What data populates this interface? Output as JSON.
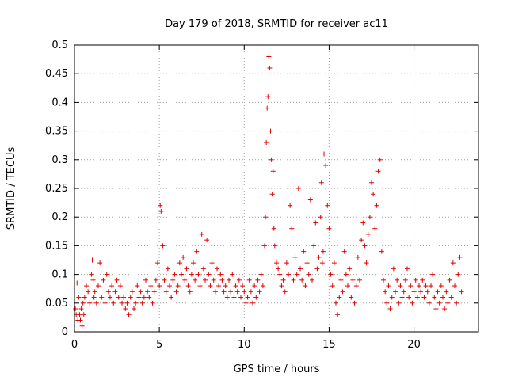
{
  "chart_data": {
    "type": "scatter",
    "title": "Day 179 of 2018, SRMTID for receiver ac11",
    "xlabel": "GPS time / hours",
    "ylabel": "SRMTID / TECUs",
    "xlim": [
      0,
      23.8
    ],
    "ylim": [
      0,
      0.5
    ],
    "xticks": [
      0,
      5,
      10,
      15,
      20
    ],
    "yticks": [
      0,
      0.05,
      0.1,
      0.15,
      0.2,
      0.25,
      0.3,
      0.35,
      0.4,
      0.45,
      0.5
    ],
    "xtick_labels": [
      "0",
      "5",
      "10",
      "15",
      "20"
    ],
    "ytick_labels": [
      "0",
      "0.05",
      "0.1",
      "0.15",
      "0.2",
      "0.25",
      "0.3",
      "0.35",
      "0.4",
      "0.45",
      "0.5"
    ],
    "grid": true,
    "marker": "+",
    "color": "#e00000",
    "series": [
      {
        "name": "SRMTID",
        "x": [
          0.05,
          0.1,
          0.15,
          0.2,
          0.25,
          0.3,
          0.35,
          0.4,
          0.45,
          0.5,
          0.55,
          0.6,
          0.7,
          0.8,
          0.9,
          1.0,
          1.05,
          1.1,
          1.15,
          1.2,
          1.3,
          1.4,
          1.5,
          1.6,
          1.7,
          1.8,
          1.9,
          2.0,
          2.1,
          2.2,
          2.3,
          2.4,
          2.5,
          2.6,
          2.7,
          2.8,
          2.9,
          3.0,
          3.1,
          3.2,
          3.3,
          3.4,
          3.5,
          3.6,
          3.7,
          3.8,
          3.9,
          4.0,
          4.1,
          4.2,
          4.3,
          4.4,
          4.5,
          4.6,
          4.7,
          4.8,
          4.9,
          5.0,
          5.05,
          5.1,
          5.2,
          5.3,
          5.4,
          5.5,
          5.6,
          5.7,
          5.8,
          5.9,
          6.0,
          6.1,
          6.2,
          6.3,
          6.4,
          6.5,
          6.6,
          6.7,
          6.8,
          6.9,
          7.0,
          7.1,
          7.2,
          7.3,
          7.4,
          7.5,
          7.6,
          7.7,
          7.8,
          7.9,
          8.0,
          8.1,
          8.2,
          8.3,
          8.4,
          8.5,
          8.6,
          8.7,
          8.8,
          8.9,
          9.0,
          9.1,
          9.2,
          9.3,
          9.4,
          9.5,
          9.6,
          9.7,
          9.8,
          9.9,
          10.0,
          10.1,
          10.2,
          10.3,
          10.4,
          10.5,
          10.6,
          10.7,
          10.8,
          10.9,
          11.0,
          11.1,
          11.2,
          11.25,
          11.3,
          11.35,
          11.4,
          11.45,
          11.5,
          11.55,
          11.6,
          11.65,
          11.7,
          11.75,
          11.8,
          11.9,
          12.0,
          12.1,
          12.2,
          12.3,
          12.4,
          12.5,
          12.6,
          12.7,
          12.8,
          12.9,
          13.0,
          13.1,
          13.2,
          13.3,
          13.4,
          13.5,
          13.6,
          13.7,
          13.8,
          13.9,
          14.0,
          14.1,
          14.2,
          14.3,
          14.4,
          14.5,
          14.55,
          14.6,
          14.65,
          14.7,
          14.8,
          14.9,
          15.0,
          15.1,
          15.2,
          15.3,
          15.4,
          15.5,
          15.6,
          15.7,
          15.8,
          15.9,
          16.0,
          16.1,
          16.2,
          16.3,
          16.4,
          16.5,
          16.6,
          16.7,
          16.8,
          16.9,
          17.0,
          17.1,
          17.2,
          17.3,
          17.4,
          17.5,
          17.6,
          17.7,
          17.8,
          17.9,
          18.0,
          18.1,
          18.2,
          18.3,
          18.4,
          18.5,
          18.6,
          18.7,
          18.8,
          18.9,
          19.0,
          19.1,
          19.2,
          19.3,
          19.4,
          19.5,
          19.6,
          19.7,
          19.8,
          19.9,
          20.0,
          20.1,
          20.2,
          20.3,
          20.4,
          20.5,
          20.6,
          20.7,
          20.8,
          20.9,
          21.0,
          21.1,
          21.2,
          21.3,
          21.4,
          21.5,
          21.6,
          21.7,
          21.8,
          21.9,
          22.0,
          22.1,
          22.2,
          22.3,
          22.4,
          22.5,
          22.6,
          22.7,
          22.8
        ],
        "y": [
          0.04,
          0.03,
          0.085,
          0.02,
          0.06,
          0.03,
          0.02,
          0.04,
          0.01,
          0.05,
          0.03,
          0.06,
          0.08,
          0.07,
          0.05,
          0.1,
          0.125,
          0.09,
          0.06,
          0.07,
          0.05,
          0.08,
          0.12,
          0.06,
          0.09,
          0.05,
          0.1,
          0.07,
          0.06,
          0.08,
          0.05,
          0.07,
          0.09,
          0.06,
          0.08,
          0.05,
          0.06,
          0.04,
          0.05,
          0.03,
          0.06,
          0.07,
          0.04,
          0.05,
          0.08,
          0.06,
          0.07,
          0.05,
          0.06,
          0.09,
          0.07,
          0.06,
          0.08,
          0.05,
          0.07,
          0.09,
          0.12,
          0.08,
          0.22,
          0.21,
          0.15,
          0.09,
          0.07,
          0.11,
          0.08,
          0.06,
          0.09,
          0.1,
          0.07,
          0.08,
          0.12,
          0.1,
          0.13,
          0.09,
          0.11,
          0.08,
          0.07,
          0.1,
          0.12,
          0.09,
          0.14,
          0.1,
          0.08,
          0.17,
          0.11,
          0.09,
          0.16,
          0.1,
          0.08,
          0.12,
          0.09,
          0.07,
          0.11,
          0.08,
          0.1,
          0.09,
          0.07,
          0.08,
          0.06,
          0.09,
          0.07,
          0.1,
          0.06,
          0.08,
          0.07,
          0.09,
          0.06,
          0.08,
          0.07,
          0.05,
          0.06,
          0.09,
          0.07,
          0.05,
          0.08,
          0.06,
          0.09,
          0.07,
          0.1,
          0.08,
          0.15,
          0.2,
          0.33,
          0.39,
          0.41,
          0.48,
          0.46,
          0.35,
          0.3,
          0.24,
          0.28,
          0.18,
          0.15,
          0.12,
          0.11,
          0.1,
          0.08,
          0.09,
          0.07,
          0.12,
          0.1,
          0.22,
          0.18,
          0.09,
          0.13,
          0.1,
          0.25,
          0.11,
          0.09,
          0.14,
          0.08,
          0.12,
          0.1,
          0.23,
          0.09,
          0.15,
          0.19,
          0.11,
          0.13,
          0.2,
          0.26,
          0.12,
          0.14,
          0.31,
          0.29,
          0.22,
          0.18,
          0.1,
          0.08,
          0.12,
          0.05,
          0.03,
          0.06,
          0.09,
          0.07,
          0.14,
          0.1,
          0.08,
          0.11,
          0.06,
          0.09,
          0.05,
          0.08,
          0.13,
          0.09,
          0.16,
          0.19,
          0.15,
          0.12,
          0.17,
          0.2,
          0.26,
          0.24,
          0.18,
          0.22,
          0.28,
          0.3,
          0.14,
          0.09,
          0.07,
          0.05,
          0.08,
          0.04,
          0.06,
          0.11,
          0.07,
          0.09,
          0.05,
          0.08,
          0.06,
          0.07,
          0.09,
          0.11,
          0.06,
          0.08,
          0.05,
          0.07,
          0.09,
          0.06,
          0.08,
          0.07,
          0.09,
          0.06,
          0.08,
          0.07,
          0.05,
          0.08,
          0.1,
          0.06,
          0.04,
          0.07,
          0.05,
          0.08,
          0.06,
          0.04,
          0.07,
          0.05,
          0.09,
          0.06,
          0.12,
          0.08,
          0.05,
          0.1,
          0.13,
          0.07
        ]
      }
    ]
  }
}
